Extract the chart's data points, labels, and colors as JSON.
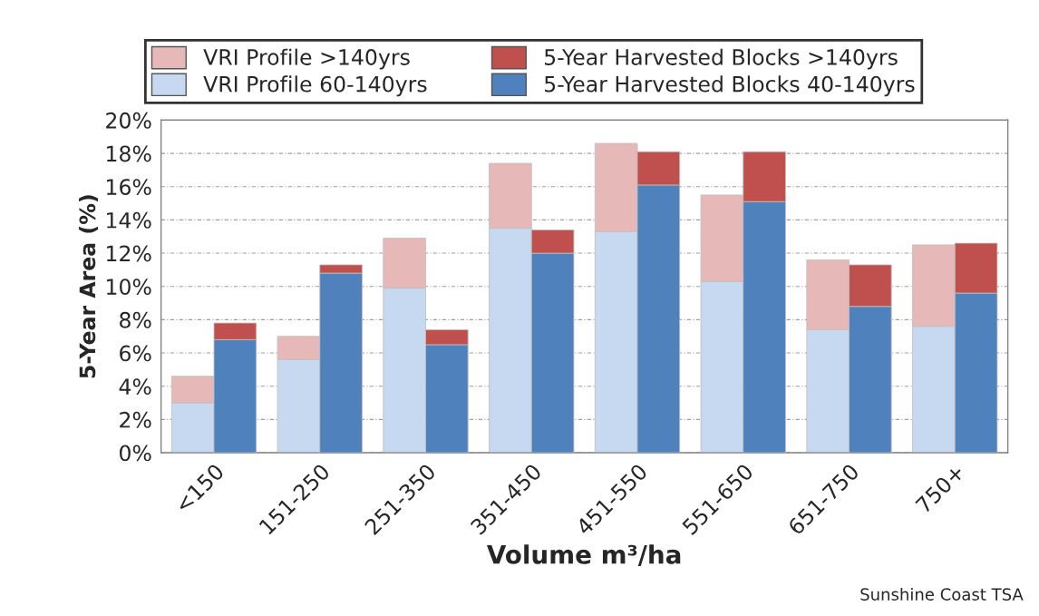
{
  "chart_data": [
    {
      "type": "bar",
      "stacked": true,
      "xlabel": "Volume m³/ha",
      "ylabel": "5-Year Area (%)",
      "categories": [
        "<150",
        "151-250",
        "251-350",
        "351-450",
        "451-550",
        "551-650",
        "651-750",
        "750+"
      ],
      "series": [
        {
          "name": "VRI Profile 60-140yrs",
          "color": "#c6d9f1",
          "values": [
            3.0,
            5.6,
            9.9,
            13.5,
            13.3,
            10.3,
            7.4,
            7.6
          ]
        },
        {
          "name": "VRI Profile >140yrs",
          "color": "#e6b9b8",
          "values": [
            1.6,
            1.4,
            3.0,
            3.9,
            5.3,
            5.2,
            4.2,
            4.9
          ]
        }
      ],
      "ylim": [
        0,
        20
      ],
      "yticks": [
        {
          "value": 0,
          "label": "0%"
        },
        {
          "value": 2,
          "label": "2%"
        },
        {
          "value": 4,
          "label": "4%"
        },
        {
          "value": 6,
          "label": "6%"
        },
        {
          "value": 8,
          "label": "8%"
        },
        {
          "value": 10,
          "label": "10%"
        },
        {
          "value": 12,
          "label": "12%"
        },
        {
          "value": 14,
          "label": "14%"
        },
        {
          "value": 16,
          "label": "16%"
        },
        {
          "value": 18,
          "label": "18%"
        },
        {
          "value": 20,
          "label": "20%"
        }
      ],
      "grid": "y",
      "legend": "top",
      "annotations": [
        "Sunshine Coast TSA"
      ]
    },
    {
      "type": "bar",
      "stacked": true,
      "categories": [
        null,
        null,
        null,
        null,
        null,
        null,
        null,
        null
      ],
      "series": [
        {
          "name": "5-Year Harvested Blocks 40-140yrs",
          "color": "#4f81bd",
          "values": [
            6.8,
            10.8,
            6.5,
            12.0,
            16.1,
            15.1,
            8.8,
            9.6
          ]
        },
        {
          "name": "5-Year Harvested Blocks >140yrs",
          "color": "#c0504d",
          "values": [
            1.0,
            0.5,
            0.9,
            1.4,
            2.0,
            3.0,
            2.5,
            3.0
          ]
        }
      ],
      "ylim": [
        0,
        20
      ],
      "tick_labels": false,
      "legend": "top"
    }
  ]
}
